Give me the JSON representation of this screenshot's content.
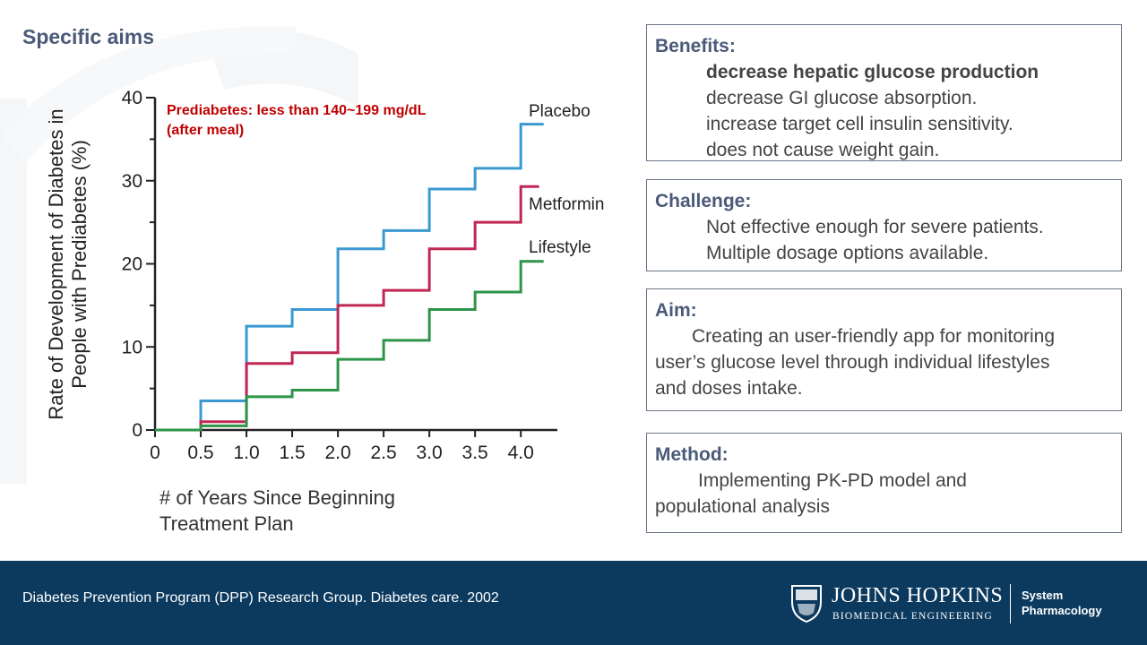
{
  "slide": {
    "title": "Specific aims"
  },
  "chart_data": {
    "type": "line",
    "step": true,
    "title": "",
    "annotation": [
      "Prediabetes: less than 140~199 mg/dL",
      "(after meal)"
    ],
    "ylabel": [
      "Rate of Development of Diabetes in",
      "People with Prediabetes (%)"
    ],
    "xlabel": [
      "# of Years Since Beginning",
      "Treatment Plan"
    ],
    "xlim": [
      0,
      4.4
    ],
    "ylim": [
      0,
      40
    ],
    "xticks": [
      "0",
      "0.5",
      "1.0",
      "1.5",
      "2.0",
      "2.5",
      "3.0",
      "3.5",
      "4.0"
    ],
    "yticks": [
      "0",
      "10",
      "20",
      "30",
      "40"
    ],
    "legend_placement": "right end of each line",
    "series": [
      {
        "name": "Placebo",
        "color": "#3a9ad0",
        "x": [
          0,
          0.5,
          1.0,
          1.5,
          2.0,
          2.5,
          3.0,
          3.5,
          4.0,
          4.25
        ],
        "y": [
          0,
          3.5,
          12.5,
          14.5,
          21.8,
          24.0,
          29.0,
          31.5,
          36.8,
          36.8
        ]
      },
      {
        "name": "Metformin",
        "color": "#c02755",
        "x": [
          0,
          0.5,
          1.0,
          1.5,
          2.0,
          2.5,
          3.0,
          3.5,
          4.0,
          4.2
        ],
        "y": [
          0,
          1.0,
          8.0,
          9.3,
          15.0,
          16.8,
          21.8,
          25.0,
          29.3,
          29.3
        ]
      },
      {
        "name": "Lifestyle",
        "color": "#2e9448",
        "x": [
          0,
          0.5,
          1.0,
          1.5,
          2.0,
          2.5,
          3.0,
          3.5,
          4.0,
          4.25
        ],
        "y": [
          0,
          0.5,
          4.0,
          4.8,
          8.5,
          10.8,
          14.5,
          16.6,
          20.3,
          20.3
        ]
      }
    ]
  },
  "boxes": {
    "benefits": {
      "heading": "Benefits:",
      "items": [
        "decrease hepatic glucose production",
        "decrease GI glucose absorption.",
        "increase target cell insulin sensitivity.",
        "does not cause weight gain."
      ]
    },
    "challenge": {
      "heading": "Challenge:",
      "items": [
        "Not effective enough for severe patients.",
        "Multiple dosage options available."
      ]
    },
    "aim": {
      "heading": "Aim:",
      "lines": [
        "Creating an user-friendly app for monitoring",
        "user’s glucose level through individual lifestyles",
        "and doses intake."
      ]
    },
    "method": {
      "heading": "Method:",
      "lines": [
        "Implementing PK-PD model and",
        "populational analysis"
      ]
    }
  },
  "footer": {
    "citation": "Diabetes Prevention Program (DPP) Research Group. Diabetes care. 2002",
    "logo_name": "JOHNS HOPKINS",
    "logo_sub": "BIOMEDICAL ENGINEERING",
    "unit": [
      "System",
      "Pharmacology"
    ],
    "background": "#0c3a5f"
  }
}
